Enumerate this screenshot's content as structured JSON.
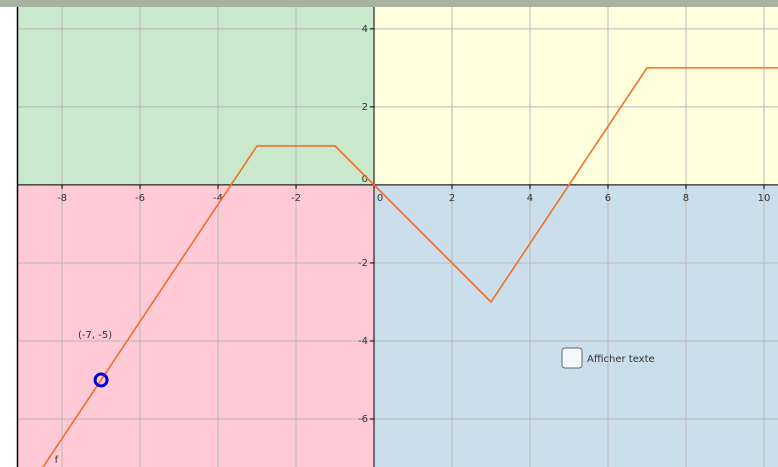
{
  "chart_data": {
    "type": "line",
    "xlim": [
      -9.13,
      10.36
    ],
    "ylim": [
      -7.23,
      4.56
    ],
    "xticks": [
      -8,
      -6,
      -4,
      -2,
      0,
      2,
      4,
      6,
      8,
      10
    ],
    "yticks": [
      -6,
      -4,
      -2,
      0,
      2,
      4
    ],
    "grid": true,
    "series": [
      {
        "name": "f",
        "color": "#f07028",
        "x": [
          -8.5,
          -3,
          -1,
          0,
          3,
          7,
          10.36
        ],
        "values": [
          -7.25,
          1,
          1,
          0,
          -3,
          3,
          3
        ]
      }
    ],
    "point": {
      "x": -7,
      "y": -5,
      "label": "(-7, -5)",
      "color": "#0000dd"
    },
    "checkbox": {
      "label": "Afficher texte"
    }
  }
}
